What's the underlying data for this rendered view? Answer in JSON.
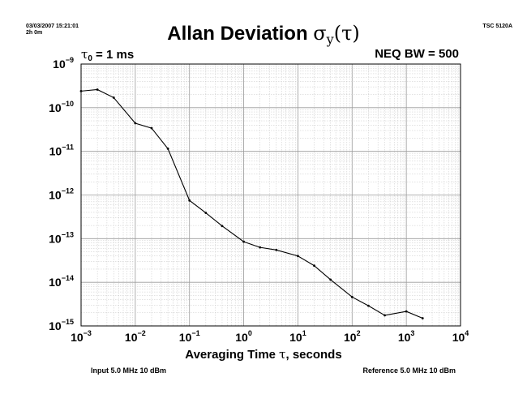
{
  "header": {
    "timestamp": "03/03/2007 15:21:01",
    "duration": "2h 0m",
    "instrument": "TSC 5120A"
  },
  "annotations": {
    "tau0_symbol": "τ",
    "tau0_sub": "0",
    "tau0_value": " = 1 ms",
    "neq_bw": "NEQ BW = 500",
    "input": "Input 5.0 MHz 10 dBm",
    "reference": "Reference 5.0 MHz 10 dBm"
  },
  "chart_data": {
    "type": "line",
    "title": "Allan Deviation σy(τ)",
    "title_parts": {
      "text": "Allan Deviation ",
      "sigma": "σ",
      "sub": "y",
      "open": "(",
      "tau": "τ",
      "close": ")"
    },
    "xlabel": "Averaging Time τ, seconds",
    "xlabel_parts": {
      "before": "Averaging Time ",
      "tau": "τ",
      "after": ", seconds"
    },
    "ylabel": "",
    "xscale": "log",
    "yscale": "log",
    "xlim": [
      0.001,
      10000
    ],
    "ylim": [
      1e-15,
      1e-09
    ],
    "grid": true,
    "x_ticks": [
      {
        "base": "10",
        "exp": "−3"
      },
      {
        "base": "10",
        "exp": "−2"
      },
      {
        "base": "10",
        "exp": "−1"
      },
      {
        "base": "10",
        "exp": "0"
      },
      {
        "base": "10",
        "exp": "1"
      },
      {
        "base": "10",
        "exp": "2"
      },
      {
        "base": "10",
        "exp": "3"
      },
      {
        "base": "10",
        "exp": "4"
      }
    ],
    "y_ticks": [
      {
        "base": "10",
        "exp": "−9"
      },
      {
        "base": "10",
        "exp": "−10"
      },
      {
        "base": "10",
        "exp": "−11"
      },
      {
        "base": "10",
        "exp": "−12"
      },
      {
        "base": "10",
        "exp": "−13"
      },
      {
        "base": "10",
        "exp": "−14"
      },
      {
        "base": "10",
        "exp": "−15"
      }
    ],
    "series": [
      {
        "x": [
          0.001,
          0.002,
          0.004,
          0.01,
          0.02,
          0.04,
          0.1,
          0.2,
          0.4,
          1,
          2,
          4,
          10,
          20,
          40,
          100,
          200,
          400,
          1000,
          2000
        ],
        "y": [
          2.4e-10,
          2.6e-10,
          1.7e-10,
          4.4e-11,
          3.4e-11,
          1.15e-11,
          7.5e-13,
          3.9e-13,
          1.95e-13,
          8.5e-14,
          6.3e-14,
          5.5e-14,
          4e-14,
          2.4e-14,
          1.15e-14,
          4.6e-15,
          2.9e-15,
          1.75e-15,
          2.15e-15,
          1.5e-15
        ],
        "color": "#000000"
      }
    ]
  }
}
